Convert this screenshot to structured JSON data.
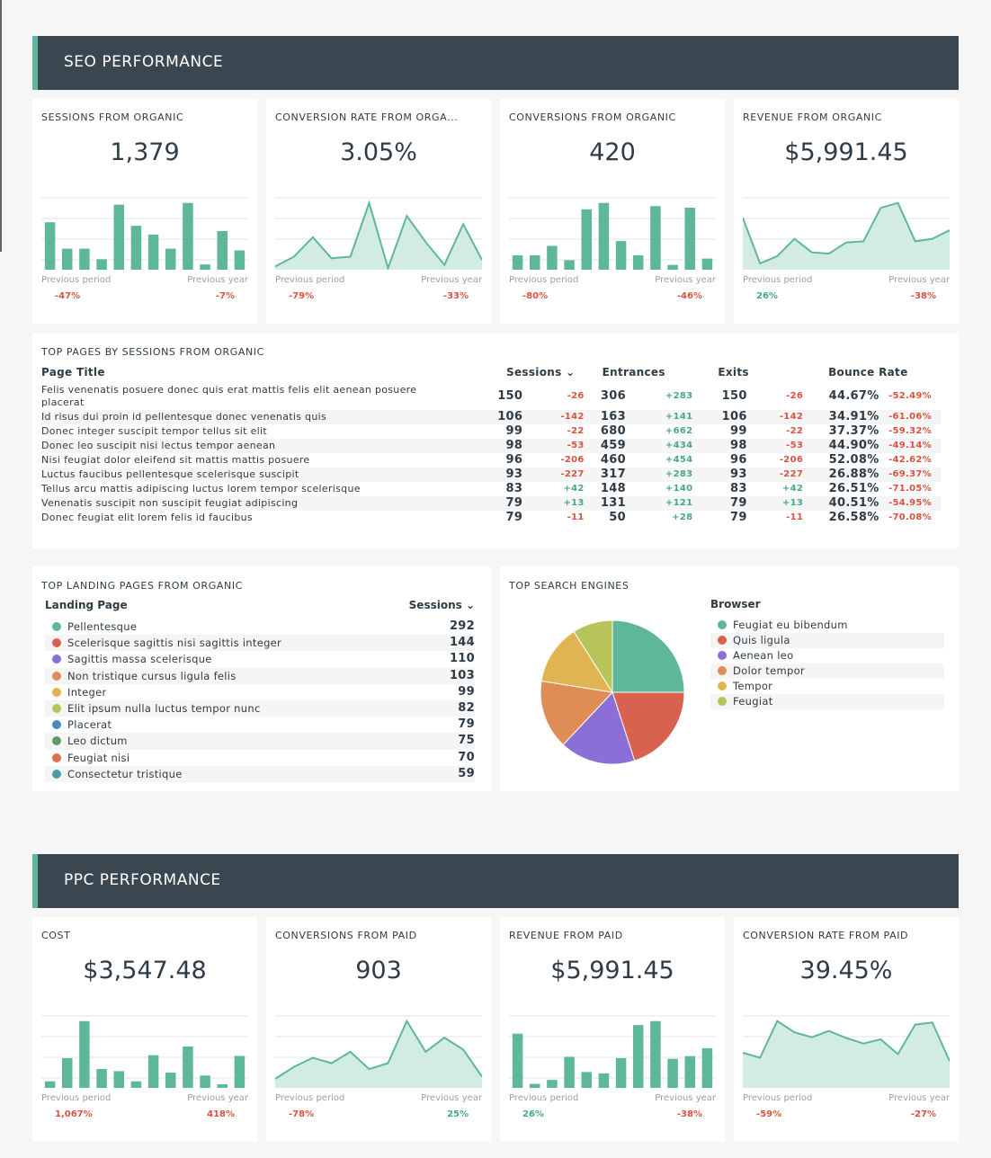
{
  "colors": {
    "accent": "#5fb79b",
    "header_bg": "#3a4750",
    "negative": "#d9533f",
    "positive": "#48a981"
  },
  "seo": {
    "header": "SEO PERFORMANCE",
    "kpis": [
      {
        "title": "SESSIONS FROM ORGANIC",
        "value": "1,379",
        "prev_period_label": "Previous period",
        "prev_year_label": "Previous year",
        "prev_period": "-47%",
        "prev_period_dir": "neg",
        "prev_year": "-7%",
        "prev_year_dir": "neg",
        "chart": {
          "type": "bar",
          "values": [
            27,
            12,
            12,
            6,
            37,
            25,
            20,
            12,
            38,
            3,
            22,
            11
          ]
        }
      },
      {
        "title": "CONVERSION RATE FROM ORGA...",
        "value": "3.05%",
        "prev_period_label": "Previous period",
        "prev_year_label": "Previous year",
        "prev_period": "-79%",
        "prev_period_dir": "neg",
        "prev_year": "-33%",
        "prev_year_dir": "neg",
        "chart": {
          "type": "area",
          "values": [
            2,
            8,
            20,
            7,
            8,
            41,
            1,
            33,
            17,
            3,
            28,
            6
          ]
        }
      },
      {
        "title": "CONVERSIONS FROM ORGANIC",
        "value": "420",
        "prev_period_label": "Previous period",
        "prev_year_label": "Previous year",
        "prev_period": "-80%",
        "prev_period_dir": "neg",
        "prev_year": "-46%",
        "prev_year_dir": "neg",
        "chart": {
          "type": "bar",
          "values": [
            9,
            9,
            15,
            6,
            38,
            42,
            18,
            9,
            40,
            3,
            39,
            7
          ]
        }
      },
      {
        "title": "REVENUE FROM ORGANIC",
        "value": "$5,991.45",
        "prev_period_label": "Previous period",
        "prev_year_label": "Previous year",
        "prev_period": "26%",
        "prev_period_dir": "pos",
        "prev_year": "-38%",
        "prev_year_dir": "neg",
        "chart": {
          "type": "area",
          "values": [
            42,
            5,
            11,
            25,
            14,
            13,
            22,
            23,
            50,
            54,
            23,
            25,
            32
          ]
        }
      }
    ],
    "top_pages": {
      "title": "TOP PAGES BY SESSIONS FROM ORGANIC",
      "columns": [
        "Page Title",
        "Sessions ⌄",
        "Entrances",
        "Exits",
        "Bounce Rate"
      ],
      "rows": [
        {
          "page": "Felis venenatis posuere donec quis erat mattis felis elit aenean posuere placerat",
          "sessions": "150",
          "sessions_d": "-26",
          "entrances": "306",
          "entrances_d": "+283",
          "exits": "150",
          "exits_d": "-26",
          "bounce": "44.67%",
          "bounce_d": "-52.49%"
        },
        {
          "page": "Id risus dui proin id pellentesque donec venenatis quis",
          "sessions": "106",
          "sessions_d": "-142",
          "entrances": "163",
          "entrances_d": "+141",
          "exits": "106",
          "exits_d": "-142",
          "bounce": "34.91%",
          "bounce_d": "-61.06%"
        },
        {
          "page": "Donec integer suscipit tempor tellus sit elit",
          "sessions": "99",
          "sessions_d": "-22",
          "entrances": "680",
          "entrances_d": "+662",
          "exits": "99",
          "exits_d": "-22",
          "bounce": "37.37%",
          "bounce_d": "-59.32%"
        },
        {
          "page": "Donec leo suscipit nisi lectus tempor aenean",
          "sessions": "98",
          "sessions_d": "-53",
          "entrances": "459",
          "entrances_d": "+434",
          "exits": "98",
          "exits_d": "-53",
          "bounce": "44.90%",
          "bounce_d": "-49.14%"
        },
        {
          "page": "Nisi feugiat dolor eleifend sit mattis mattis posuere",
          "sessions": "96",
          "sessions_d": "-206",
          "entrances": "460",
          "entrances_d": "+454",
          "exits": "96",
          "exits_d": "-206",
          "bounce": "52.08%",
          "bounce_d": "-42.62%"
        },
        {
          "page": "Luctus faucibus pellentesque scelerisque suscipit",
          "sessions": "93",
          "sessions_d": "-227",
          "entrances": "317",
          "entrances_d": "+283",
          "exits": "93",
          "exits_d": "-227",
          "bounce": "26.88%",
          "bounce_d": "-69.37%"
        },
        {
          "page": "Tellus arcu mattis adipiscing luctus lorem tempor scelerisque",
          "sessions": "83",
          "sessions_d": "+42",
          "entrances": "148",
          "entrances_d": "+140",
          "exits": "83",
          "exits_d": "+42",
          "bounce": "26.51%",
          "bounce_d": "-71.05%"
        },
        {
          "page": "Venenatis suscipit non suscipit feugiat adipiscing",
          "sessions": "79",
          "sessions_d": "+13",
          "entrances": "131",
          "entrances_d": "+121",
          "exits": "79",
          "exits_d": "+13",
          "bounce": "40.51%",
          "bounce_d": "-54.95%"
        },
        {
          "page": "Donec feugiat elit lorem felis id faucibus",
          "sessions": "79",
          "sessions_d": "-11",
          "entrances": "50",
          "entrances_d": "+28",
          "exits": "79",
          "exits_d": "-11",
          "bounce": "26.58%",
          "bounce_d": "-70.08%"
        }
      ]
    },
    "landing_pages": {
      "title": "TOP LANDING PAGES FROM ORGANIC",
      "col_page": "Landing Page",
      "col_sessions": "Sessions ⌄",
      "rows": [
        {
          "label": "Pellentesque",
          "value": "292",
          "color": "#5fb79b"
        },
        {
          "label": "Scelerisque sagittis nisi sagittis integer",
          "value": "144",
          "color": "#d9614f"
        },
        {
          "label": "Sagittis massa scelerisque",
          "value": "110",
          "color": "#8b6fd6"
        },
        {
          "label": "Non tristique cursus ligula felis",
          "value": "103",
          "color": "#e08c55"
        },
        {
          "label": "Integer",
          "value": "99",
          "color": "#e0b551"
        },
        {
          "label": "Elit ipsum nulla luctus tempor nunc",
          "value": "82",
          "color": "#b6c45a"
        },
        {
          "label": "Placerat",
          "value": "79",
          "color": "#4a86c5"
        },
        {
          "label": "Leo dictum",
          "value": "75",
          "color": "#5e9966"
        },
        {
          "label": "Feugiat nisi",
          "value": "70",
          "color": "#d9704f"
        },
        {
          "label": "Consectetur tristique",
          "value": "59",
          "color": "#4a9aa8"
        }
      ]
    },
    "search_engines": {
      "title": "TOP SEARCH ENGINES",
      "legend_title": "Browser",
      "chart_data": {
        "type": "pie",
        "slices": [
          {
            "name": "Feugiat eu bibendum",
            "value": 25,
            "color": "#5fb79b"
          },
          {
            "name": "Quis ligula",
            "value": 20,
            "color": "#d9614f"
          },
          {
            "name": "Aenean leo",
            "value": 17,
            "color": "#8b6fd6"
          },
          {
            "name": "Dolor tempor",
            "value": 15.5,
            "color": "#e08c55"
          },
          {
            "name": "Tempor",
            "value": 13.5,
            "color": "#e0b551"
          },
          {
            "name": "Feugiat",
            "value": 9,
            "color": "#b6c45a"
          }
        ]
      }
    }
  },
  "ppc": {
    "header": "PPC PERFORMANCE",
    "kpis": [
      {
        "title": "COST",
        "value": "$3,547.48",
        "prev_period_label": "Previous period",
        "prev_year_label": "Previous year",
        "prev_period": "1,067%",
        "prev_period_dir": "neg",
        "prev_year": "418%",
        "prev_year_dir": "neg",
        "chart": {
          "type": "bar",
          "values": [
            9,
            41,
            92,
            26,
            23,
            9,
            45,
            21,
            57,
            17,
            5,
            44
          ]
        }
      },
      {
        "title": "CONVERSIONS FROM PAID",
        "value": "903",
        "prev_period_label": "Previous period",
        "prev_year_label": "Previous year",
        "prev_period": "-78%",
        "prev_period_dir": "neg",
        "prev_year": "25%",
        "prev_year_dir": "pos",
        "chart": {
          "type": "area",
          "values": [
            12,
            28,
            40,
            33,
            48,
            25,
            33,
            89,
            48,
            67,
            51,
            15
          ]
        }
      },
      {
        "title": "REVENUE FROM PAID",
        "value": "$5,991.45",
        "prev_period_label": "Previous period",
        "prev_year_label": "Previous year",
        "prev_period": "26%",
        "prev_period_dir": "pos",
        "prev_year": "-38%",
        "prev_year_dir": "neg",
        "chart": {
          "type": "bar",
          "values": [
            82,
            6,
            12,
            47,
            24,
            22,
            45,
            95,
            101,
            44,
            48,
            60
          ]
        }
      },
      {
        "title": "CONVERSION RATE FROM PAID",
        "value": "39.45%",
        "prev_period_label": "Previous period",
        "prev_year_label": "Previous year",
        "prev_period": "-59%",
        "prev_period_dir": "neg",
        "prev_year": "-27%",
        "prev_year_dir": "neg",
        "chart": {
          "type": "area",
          "values": [
            50,
            43,
            95,
            79,
            72,
            81,
            71,
            63,
            69,
            48,
            90,
            93,
            38
          ]
        }
      }
    ]
  }
}
